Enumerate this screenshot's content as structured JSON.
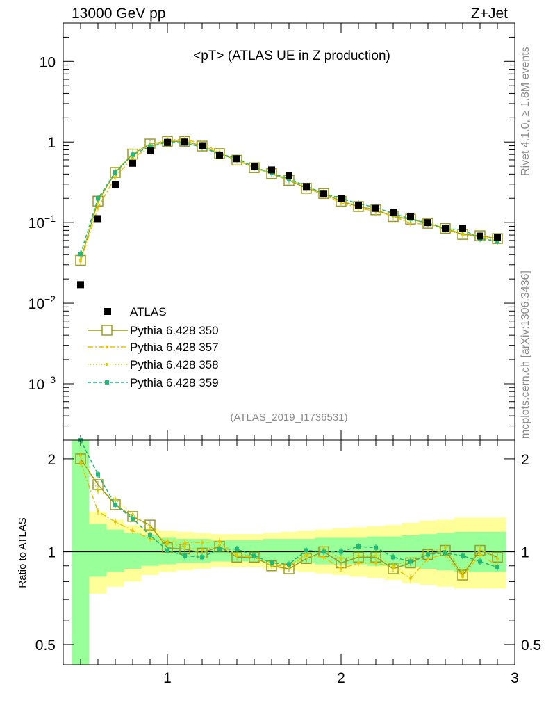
{
  "header": {
    "energy": "13000 GeV pp",
    "process": "Z+Jet"
  },
  "chart_data": {
    "type": "line",
    "title": "<pT> (ATLAS UE in Z production)",
    "analysis": "(ATLAS_2019_I1736531)",
    "side_label_top": "Rivet 4.1.0, ≥ 1.8M events",
    "side_label_bottom": "mcplots.cern.ch [arXiv:1306.3436]",
    "xlim": [
      0.4,
      3.0
    ],
    "x_ticks": [
      {
        "value": 1,
        "label": "1"
      },
      {
        "value": 2,
        "label": "2"
      },
      {
        "value": 3,
        "label": "3"
      }
    ],
    "main_yscale": "log",
    "main_ylim": [
      0.0002,
      30
    ],
    "main_y_ticks": [
      {
        "value": 0.001,
        "base": "10",
        "exp": "−3"
      },
      {
        "value": 0.01,
        "base": "10",
        "exp": "−2"
      },
      {
        "value": 0.1,
        "base": "10",
        "exp": "−1"
      },
      {
        "value": 1,
        "base": "1",
        "exp": ""
      },
      {
        "value": 10,
        "base": "10",
        "exp": ""
      }
    ],
    "ratio_ylabel": "Ratio to ATLAS",
    "ratio_yscale": "log",
    "ratio_ylim": [
      0.43,
      2.3
    ],
    "ratio_y_ticks": [
      {
        "value": 0.5,
        "label": "0.5"
      },
      {
        "value": 1,
        "label": "1"
      },
      {
        "value": 2,
        "label": "2"
      }
    ],
    "x": [
      0.5,
      0.6,
      0.7,
      0.8,
      0.9,
      1.0,
      1.1,
      1.2,
      1.3,
      1.4,
      1.5,
      1.6,
      1.7,
      1.8,
      1.9,
      2.0,
      2.1,
      2.2,
      2.3,
      2.4,
      2.5,
      2.6,
      2.7,
      2.8,
      2.9
    ],
    "data": {
      "name": "ATLAS",
      "values": [
        0.017,
        0.112,
        0.295,
        0.545,
        0.775,
        0.99,
        1.0,
        0.9,
        0.69,
        0.62,
        0.5,
        0.45,
        0.38,
        0.28,
        0.23,
        0.2,
        0.165,
        0.15,
        0.135,
        0.12,
        0.1,
        0.084,
        0.085,
        0.068,
        0.066
      ],
      "band_green": [
        [
          0.2,
          2.3
        ],
        [
          0.83,
          1.23
        ],
        [
          0.86,
          1.18
        ],
        [
          0.88,
          1.15
        ],
        [
          0.9,
          1.13
        ],
        [
          0.91,
          1.11
        ],
        [
          0.92,
          1.1
        ],
        [
          0.92,
          1.1
        ],
        [
          0.93,
          1.09
        ],
        [
          0.93,
          1.09
        ],
        [
          0.93,
          1.09
        ],
        [
          0.92,
          1.1
        ],
        [
          0.92,
          1.1
        ],
        [
          0.92,
          1.1
        ],
        [
          0.91,
          1.11
        ],
        [
          0.91,
          1.11
        ],
        [
          0.91,
          1.11
        ],
        [
          0.9,
          1.12
        ],
        [
          0.9,
          1.12
        ],
        [
          0.89,
          1.13
        ],
        [
          0.88,
          1.14
        ],
        [
          0.87,
          1.15
        ],
        [
          0.86,
          1.16
        ],
        [
          0.86,
          1.16
        ],
        [
          0.86,
          1.16
        ]
      ],
      "band_yellow": [
        [
          0.2,
          2.3
        ],
        [
          0.73,
          1.35
        ],
        [
          0.77,
          1.27
        ],
        [
          0.8,
          1.22
        ],
        [
          0.84,
          1.19
        ],
        [
          0.86,
          1.17
        ],
        [
          0.87,
          1.16
        ],
        [
          0.88,
          1.15
        ],
        [
          0.89,
          1.14
        ],
        [
          0.89,
          1.14
        ],
        [
          0.89,
          1.14
        ],
        [
          0.88,
          1.15
        ],
        [
          0.87,
          1.16
        ],
        [
          0.86,
          1.17
        ],
        [
          0.85,
          1.18
        ],
        [
          0.84,
          1.19
        ],
        [
          0.83,
          1.2
        ],
        [
          0.82,
          1.21
        ],
        [
          0.81,
          1.22
        ],
        [
          0.79,
          1.24
        ],
        [
          0.78,
          1.26
        ],
        [
          0.77,
          1.27
        ],
        [
          0.76,
          1.29
        ],
        [
          0.76,
          1.29
        ],
        [
          0.76,
          1.29
        ]
      ]
    },
    "series": [
      {
        "name": "Pythia 6.428 350",
        "color": "#9b9b22",
        "style": "solid-open-square",
        "ratio": [
          2.0,
          1.65,
          1.42,
          1.3,
          1.22,
          1.03,
          1.02,
          0.99,
          1.04,
          0.96,
          0.96,
          0.9,
          0.88,
          0.95,
          1.0,
          0.92,
          0.96,
          0.96,
          0.88,
          0.92,
          0.98,
          1.01,
          0.84,
          1.01,
          0.96
        ]
      },
      {
        "name": "Pythia 6.428 357",
        "color": "#e6c200",
        "style": "dashdot-star",
        "ratio": [
          1.95,
          1.35,
          1.25,
          1.17,
          1.1,
          1.08,
          1.07,
          1.07,
          1.08,
          0.97,
          0.96,
          0.9,
          0.9,
          0.97,
          0.96,
          0.88,
          0.92,
          0.92,
          0.89,
          0.82,
          0.95,
          0.98,
          0.83,
          0.98,
          0.9
        ]
      },
      {
        "name": "Pythia 6.428 358",
        "color": "#d6d000",
        "style": "dotted-dot",
        "ratio": [
          2.05,
          1.58,
          1.48,
          1.32,
          1.2,
          1.06,
          1.04,
          1.01,
          1.05,
          0.98,
          0.97,
          0.92,
          0.9,
          0.98,
          1.02,
          0.95,
          0.97,
          0.97,
          0.9,
          0.94,
          1.0,
          1.03,
          0.86,
          1.02,
          0.95
        ]
      },
      {
        "name": "Pythia 6.428 359",
        "color": "#1fba78",
        "style": "dashed-filled-square",
        "ratio": [
          2.4,
          1.78,
          1.42,
          1.28,
          1.13,
          1.01,
          0.97,
          0.96,
          1.02,
          1.02,
          0.97,
          0.92,
          0.91,
          1.01,
          1.0,
          1.0,
          1.04,
          1.03,
          0.96,
          0.93,
          0.98,
          0.99,
          0.97,
          0.93,
          0.89
        ]
      }
    ]
  }
}
